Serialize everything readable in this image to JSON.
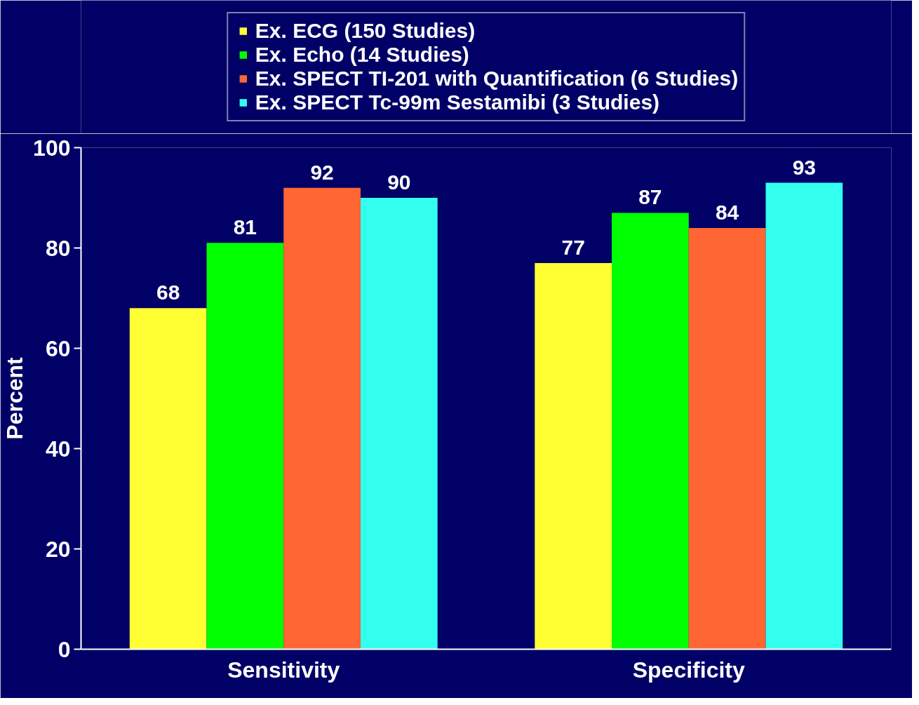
{
  "chart_data": {
    "type": "bar",
    "ylabel": "Percent",
    "categories": [
      "Sensitivity",
      "Specificity"
    ],
    "series": [
      {
        "name": "Ex. ECG (150 Studies)",
        "color": "#ffff33",
        "values": [
          68,
          77
        ]
      },
      {
        "name": "Ex. Echo (14 Studies)",
        "color": "#00ff00",
        "values": [
          81,
          87
        ]
      },
      {
        "name": "Ex. SPECT TI-201 with Quantification (6 Studies)",
        "color": "#ff6633",
        "values": [
          92,
          84
        ]
      },
      {
        "name": "Ex. SPECT Tc-99m Sestamibi (3 Studies)",
        "color": "#33ffee",
        "values": [
          90,
          93
        ]
      }
    ],
    "ylim": [
      0,
      100
    ],
    "yticks": [
      0,
      20,
      40,
      60,
      80,
      100
    ],
    "data_labels": true,
    "legend": "top",
    "grid": false
  }
}
